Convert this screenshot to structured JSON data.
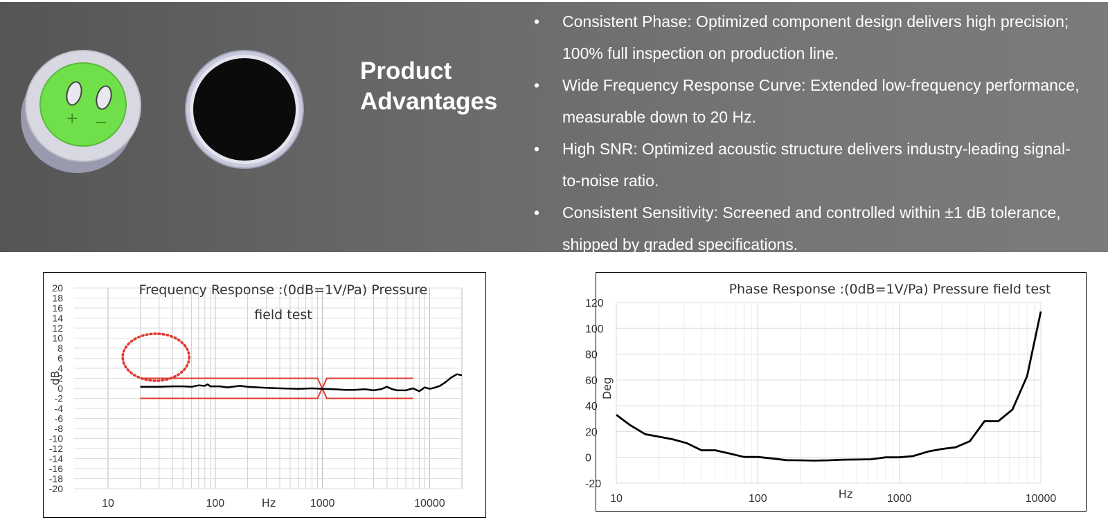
{
  "banner": {
    "title": "Product Advantages",
    "advantages": [
      "Consistent Phase: Optimized component design delivers high precision; 100% full inspection on production line.",
      "Wide Frequency Response Curve: Extended low-frequency performance, measurable down to 20 Hz.",
      "High SNR: Optimized acoustic structure delivers industry-leading signal-to-noise ratio.",
      "Consistent Sensitivity: Screened and controlled within ±1 dB tolerance, shipped by graded specifications."
    ],
    "bullet": "•",
    "colors": {
      "background": "#6a6a6a",
      "text": "#ffffff",
      "capsule_face": "#6fe04a"
    },
    "capsule_marks": {
      "plus": "+",
      "minus": "−"
    }
  },
  "chart_data": [
    {
      "type": "line",
      "title": "Frequency Response :(0dB=1V/Pa) Pressure field test",
      "xlabel": "Hz",
      "ylabel": "dB",
      "x_scale": "log",
      "xlim": [
        10,
        20000
      ],
      "ylim": [
        -20,
        20
      ],
      "xticks": [
        10,
        100,
        1000,
        10000
      ],
      "yticks": [
        -20,
        -18,
        -16,
        -14,
        -12,
        -10,
        -8,
        -6,
        -4,
        -2,
        0,
        2,
        4,
        6,
        8,
        10,
        12,
        14,
        16,
        18,
        20
      ],
      "grid": true,
      "series": [
        {
          "color": "#000000",
          "points": [
            [
              20,
              0.3
            ],
            [
              30,
              0.3
            ],
            [
              40,
              0.4
            ],
            [
              50,
              0.4
            ],
            [
              60,
              0.3
            ],
            [
              70,
              0.6
            ],
            [
              80,
              0.5
            ],
            [
              85,
              0.8
            ],
            [
              90,
              0.4
            ],
            [
              110,
              0.4
            ],
            [
              130,
              0.2
            ],
            [
              170,
              0.5
            ],
            [
              200,
              0.3
            ],
            [
              300,
              0.1
            ],
            [
              400,
              0
            ],
            [
              600,
              -0.1
            ],
            [
              800,
              0.0
            ],
            [
              1000,
              -0.1
            ],
            [
              1300,
              -0.2
            ],
            [
              1600,
              -0.3
            ],
            [
              2000,
              -0.3
            ],
            [
              2500,
              -0.2
            ],
            [
              3000,
              -0.4
            ],
            [
              3500,
              -0.2
            ],
            [
              4000,
              0.3
            ],
            [
              4500,
              -0.2
            ],
            [
              5000,
              -0.4
            ],
            [
              6000,
              -0.4
            ],
            [
              7000,
              0.0
            ],
            [
              8000,
              -0.6
            ],
            [
              9000,
              0.2
            ],
            [
              10000,
              -0.1
            ],
            [
              11000,
              0.1
            ],
            [
              12500,
              0.5
            ],
            [
              14000,
              1.2
            ],
            [
              16000,
              2.2
            ],
            [
              18000,
              2.8
            ],
            [
              20000,
              2.6
            ]
          ]
        }
      ],
      "limit_lines": {
        "color": "#e03a2e",
        "upper": [
          [
            20,
            2
          ],
          [
            900,
            2
          ],
          [
            1100,
            -2
          ],
          [
            7000,
            -2
          ]
        ],
        "lower": [
          [
            20,
            -2
          ],
          [
            900,
            -2
          ],
          [
            1100,
            2
          ],
          [
            7000,
            2
          ]
        ]
      },
      "annotation": {
        "shape": "dotted-ellipse",
        "color": "#e03a2e",
        "center": [
          28,
          6.2
        ]
      }
    },
    {
      "type": "line",
      "title": "Phase Response :(0dB=1V/Pa) Pressure field test",
      "xlabel": "Hz",
      "ylabel": "Deg",
      "x_scale": "log",
      "xlim": [
        10,
        10000
      ],
      "ylim": [
        -20,
        120
      ],
      "xticks": [
        10,
        100,
        1000,
        10000
      ],
      "yticks": [
        -20,
        0,
        20,
        40,
        60,
        80,
        100,
        120
      ],
      "grid": true,
      "series": [
        {
          "color": "#000000",
          "points": [
            [
              10,
              33
            ],
            [
              12.5,
              25
            ],
            [
              16,
              18
            ],
            [
              20,
              16
            ],
            [
              25,
              14
            ],
            [
              31.5,
              11
            ],
            [
              40,
              5.5
            ],
            [
              50,
              5.5
            ],
            [
              63,
              3
            ],
            [
              80,
              0.3
            ],
            [
              100,
              0.3
            ],
            [
              125,
              -0.8
            ],
            [
              160,
              -2.2
            ],
            [
              200,
              -2.3
            ],
            [
              250,
              -2.5
            ],
            [
              315,
              -2.3
            ],
            [
              400,
              -1.8
            ],
            [
              500,
              -1.7
            ],
            [
              630,
              -1.5
            ],
            [
              800,
              0
            ],
            [
              1000,
              0
            ],
            [
              1250,
              1
            ],
            [
              1600,
              4.5
            ],
            [
              2000,
              6.5
            ],
            [
              2500,
              7.8
            ],
            [
              3150,
              12.5
            ],
            [
              4000,
              28
            ],
            [
              5000,
              28
            ],
            [
              6300,
              37
            ],
            [
              8000,
              63
            ],
            [
              10000,
              113
            ]
          ]
        }
      ]
    }
  ]
}
